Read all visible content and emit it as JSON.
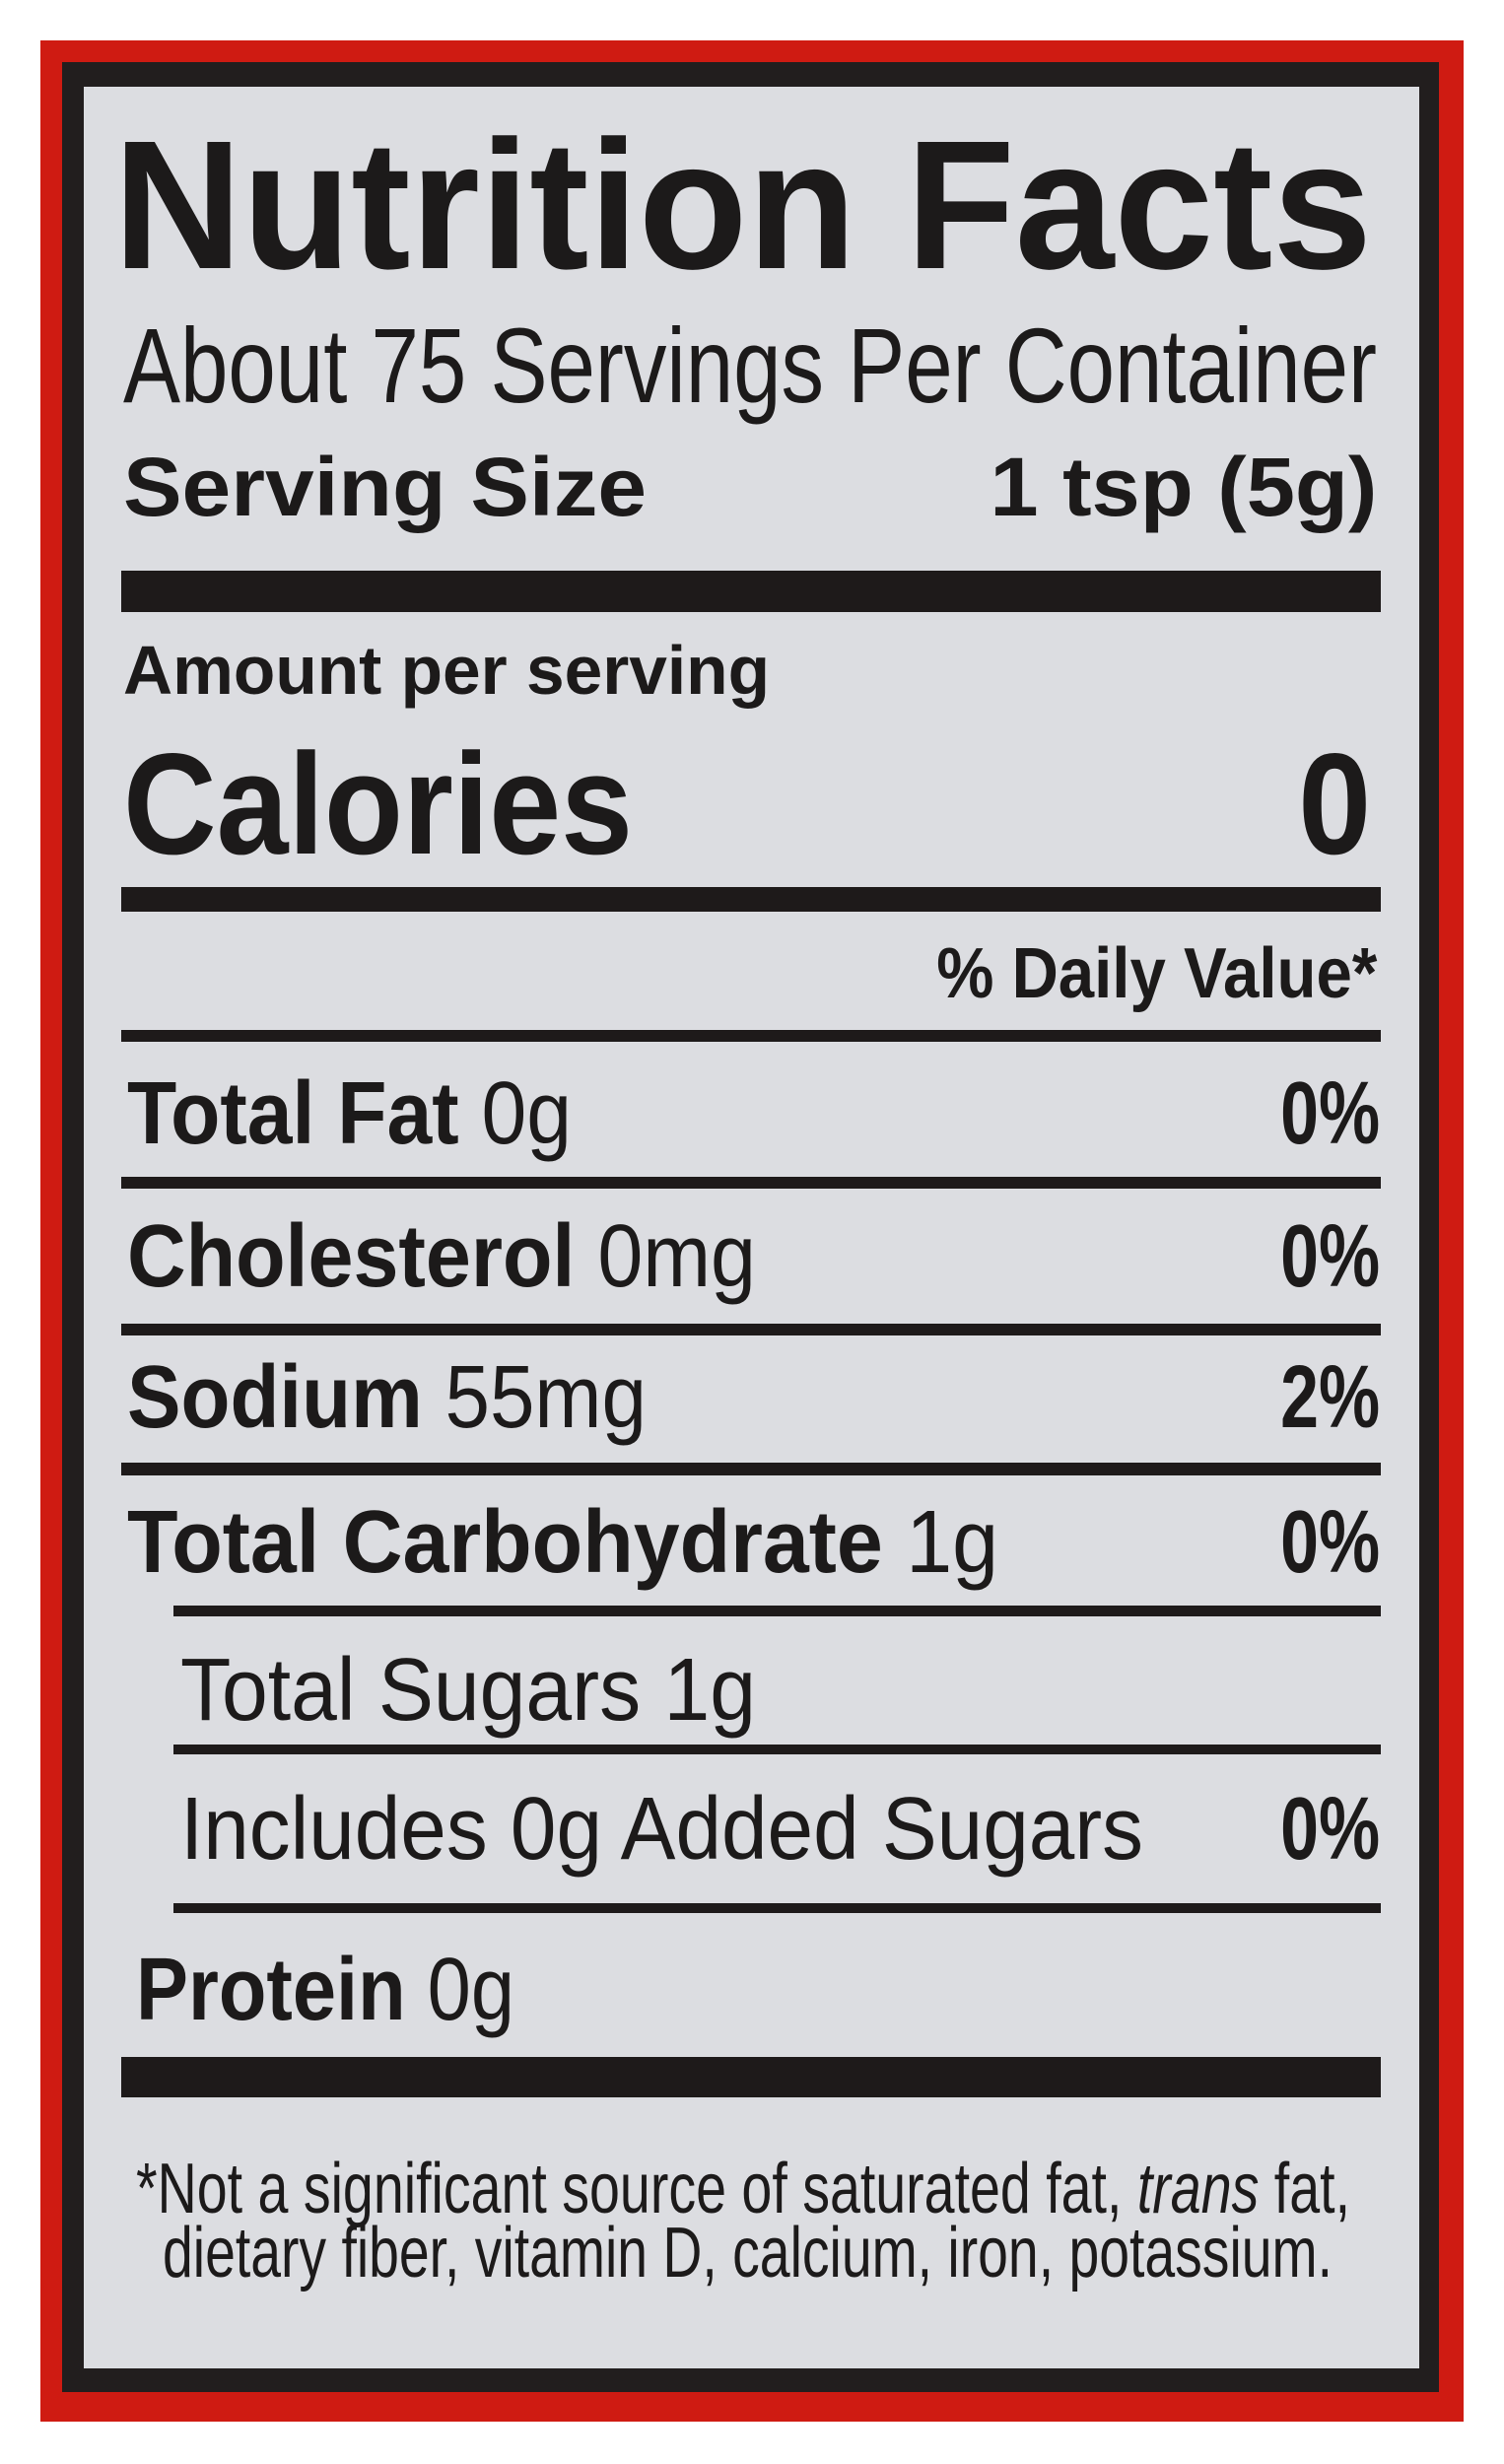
{
  "label": {
    "title": "Nutrition Facts",
    "servings_per_container": "About 75 Servings Per Container",
    "serving_size": {
      "label": "Serving Size",
      "value": "1 tsp (5g)"
    },
    "amount_per_serving": "Amount per serving",
    "calories": {
      "label": "Calories",
      "value": "0"
    },
    "daily_value_header": "% Daily Value*",
    "nutrients": [
      {
        "name": "Total Fat",
        "amount": " 0g",
        "dv": "0%"
      },
      {
        "name": "Cholesterol",
        "amount": " 0mg",
        "dv": "0%"
      },
      {
        "name": "Sodium",
        "amount": " 55mg",
        "dv": "2%"
      },
      {
        "name": "Total Carbohydrate",
        "amount": " 1g",
        "dv": "0%"
      },
      {
        "name": "Total Sugars 1g"
      },
      {
        "name": "Includes 0g Added Sugars",
        "dv": "0%"
      },
      {
        "name": "Protein",
        "amount": " 0g"
      }
    ],
    "footnote": {
      "line1_a": "*Not a significant source of saturated fat, ",
      "line1_italic": "trans",
      "line1_b": " fat,",
      "line2": "dietary fiber, vitamin D, calcium, iron, potassium."
    }
  },
  "colors": {
    "border_red": "#cf1b12",
    "border_black": "#221e1e",
    "panel": "#dcdde1",
    "text": "#1c1a1a"
  }
}
